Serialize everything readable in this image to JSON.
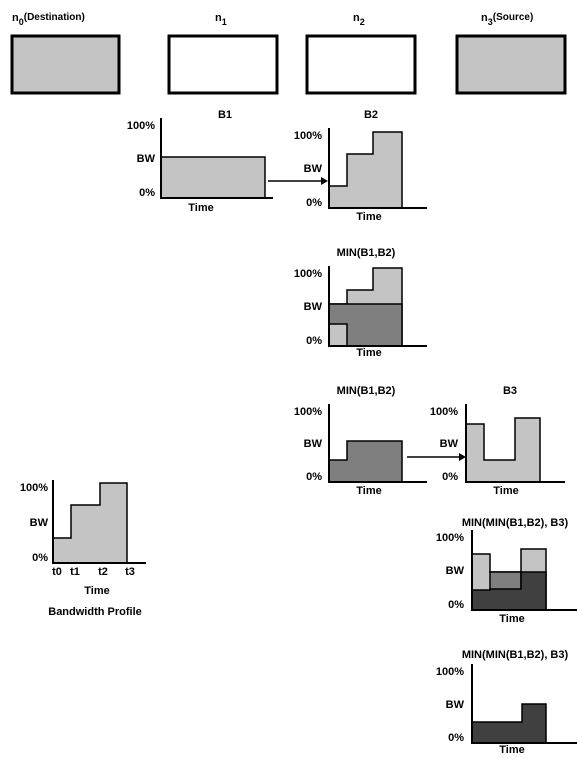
{
  "colors": {
    "light": "#c4c4c4",
    "mid": "#7f7f7f",
    "dark": "#404040",
    "stroke": "#000000",
    "white": "#ffffff"
  },
  "nodes": [
    {
      "id": "n0",
      "base": "n",
      "sub": "0",
      "suffix": "(Destination)",
      "fill": "light"
    },
    {
      "id": "n1",
      "base": "n",
      "sub": "1",
      "suffix": "",
      "fill": "white"
    },
    {
      "id": "n2",
      "base": "n",
      "sub": "2",
      "suffix": "",
      "fill": "white"
    },
    {
      "id": "n3",
      "base": "n",
      "sub": "3",
      "suffix": "(Source)",
      "fill": "light"
    }
  ],
  "axis_labels": {
    "top": "100%",
    "mid": "BW",
    "bottom": "0%",
    "x": "Time"
  },
  "plots": [
    {
      "id": "B1",
      "title": "B1"
    },
    {
      "id": "B2",
      "title": "B2"
    },
    {
      "id": "MIN12",
      "title": "MIN(B1,B2)"
    },
    {
      "id": "MIN12b",
      "title": "MIN(B1,B2)"
    },
    {
      "id": "B3",
      "title": "B3"
    },
    {
      "id": "MIN123a",
      "title": "MIN(MIN(B1,B2), B3)"
    },
    {
      "id": "MIN123b",
      "title": "MIN(MIN(B1,B2), B3)"
    },
    {
      "id": "profile",
      "title": ""
    }
  ],
  "profile": {
    "ticks": [
      "t0",
      "t1",
      "t2",
      "t3"
    ],
    "caption": "Bandwidth Profile"
  }
}
